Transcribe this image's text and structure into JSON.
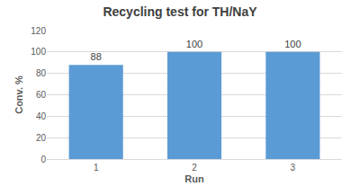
{
  "chart_data": {
    "type": "bar",
    "title": "Recycling test for TH/NaY",
    "x_label": "Run",
    "y_label": "Conv. %",
    "categories": [
      "1",
      "2",
      "3"
    ],
    "values": [
      88,
      100,
      100
    ],
    "color": "#5b9bd5",
    "ylim": [
      0,
      120
    ],
    "yticks": [
      0,
      20,
      40,
      60,
      80,
      100,
      120
    ],
    "grid": true,
    "data_labels": true
  }
}
